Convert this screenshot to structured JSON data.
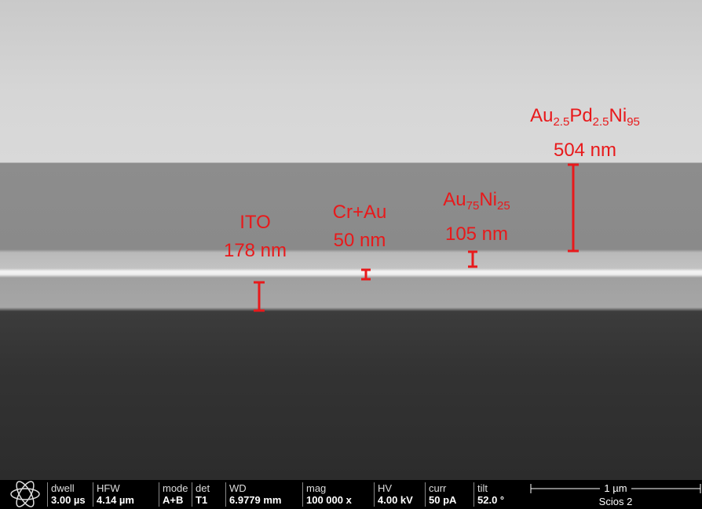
{
  "annotations": [
    {
      "formula": [
        [
          "Au",
          "2.5"
        ],
        [
          "Pd",
          "2.5"
        ],
        [
          "Ni",
          "95"
        ]
      ],
      "thickness": "504 nm"
    },
    {
      "formula": [
        [
          "Au",
          "75"
        ],
        [
          "Ni",
          "25"
        ]
      ],
      "thickness": "105 nm"
    },
    {
      "formula": [
        [
          "Cr+Au",
          ""
        ]
      ],
      "thickness": "50 nm"
    },
    {
      "formula": [
        [
          "ITO",
          ""
        ]
      ],
      "thickness": "178 nm"
    }
  ],
  "databar": {
    "fields": [
      {
        "label": "dwell",
        "value": "3.00 µs"
      },
      {
        "label": "HFW",
        "value": "4.14 µm"
      },
      {
        "label": "mode",
        "value": "A+B"
      },
      {
        "label": "det",
        "value": "T1"
      },
      {
        "label": "WD",
        "value": "6.9779 mm"
      },
      {
        "label": "mag",
        "value": "100 000 x"
      },
      {
        "label": "HV",
        "value": "4.00 kV"
      },
      {
        "label": "curr",
        "value": "50 pA"
      },
      {
        "label": "tilt",
        "value": "52.0 °"
      }
    ],
    "scale": "1 µm",
    "instrument": "Scios 2"
  }
}
